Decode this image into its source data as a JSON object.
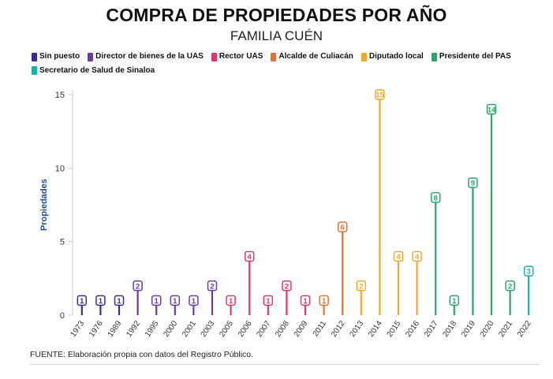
{
  "header": {
    "title": "COMPRA DE PROPIEDADES POR AÑO",
    "subtitle": "FAMILIA CUÉN"
  },
  "legend": [
    {
      "label": "Sin puesto",
      "color": "#3f2a8f"
    },
    {
      "label": "Director de bienes de la UAS",
      "color": "#6a3aa6"
    },
    {
      "label": "Rector UAS",
      "color": "#e0366b"
    },
    {
      "label": "Alcalde de Culiacán",
      "color": "#e8702a"
    },
    {
      "label": "Diputado local",
      "color": "#f0a92a"
    },
    {
      "label": "Presidente del PAS",
      "color": "#26a86a"
    },
    {
      "label": "Secretario de Salud de Sinaloa",
      "color": "#1bb1aa"
    }
  ],
  "footer": {
    "source": "FUENTE: Elaboración propia con datos del Registro Público."
  },
  "chart_data": {
    "type": "bar",
    "ylabel": "Propiedades",
    "ylim": [
      0,
      15
    ],
    "yticks": [
      0,
      5,
      10,
      15
    ],
    "grid": false,
    "categories": [
      "1973",
      "1976",
      "1989",
      "1992",
      "1995",
      "2000",
      "2001",
      "2003",
      "2005",
      "2006",
      "2007",
      "2008",
      "2009",
      "2011",
      "2012",
      "2013",
      "2014",
      "2015",
      "2016",
      "2017",
      "2018",
      "2019",
      "2020",
      "2021",
      "2022"
    ],
    "values": [
      1,
      1,
      1,
      2,
      1,
      1,
      1,
      2,
      1,
      4,
      1,
      2,
      1,
      1,
      6,
      2,
      15,
      4,
      4,
      8,
      1,
      9,
      14,
      2,
      3
    ],
    "groups": [
      "Sin puesto",
      "Sin puesto",
      "Sin puesto",
      "Director de bienes de la UAS",
      "Director de bienes de la UAS",
      "Director de bienes de la UAS",
      "Director de bienes de la UAS",
      "Director de bienes de la UAS",
      "Rector UAS",
      "Rector UAS",
      "Rector UAS",
      "Rector UAS",
      "Rector UAS",
      "Alcalde de Culiacán",
      "Alcalde de Culiacán",
      "Diputado local",
      "Diputado local",
      "Diputado local",
      "Diputado local",
      "Presidente del PAS",
      "Presidente del PAS",
      "Presidente del PAS",
      "Presidente del PAS",
      "Presidente del PAS",
      "Secretario de Salud de Sinaloa"
    ]
  }
}
